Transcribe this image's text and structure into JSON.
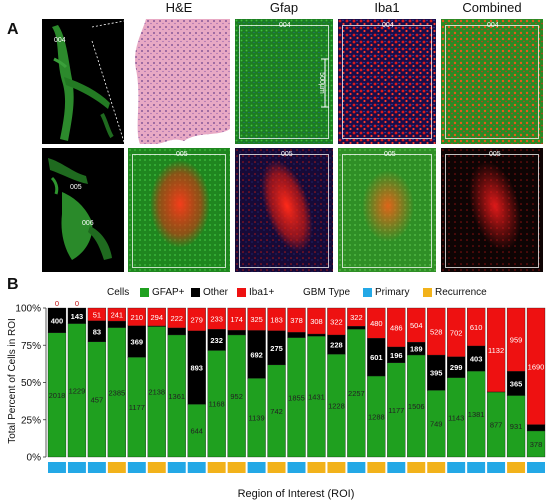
{
  "panel_a": {
    "letter": "A",
    "columns": [
      "H&E",
      "Gfap",
      "Iba1",
      "Combined"
    ],
    "row1": {
      "overview_label": "004",
      "tile_labels": [
        "004",
        "004",
        "004"
      ],
      "scale_bar": "500µm"
    },
    "row2": {
      "overview_labels": [
        "005",
        "006"
      ],
      "tile_labels": [
        "005",
        "005",
        "005",
        "005"
      ]
    }
  },
  "panel_b": {
    "letter": "B",
    "legend": {
      "cells_title": "Cells",
      "cells": [
        {
          "label": "GFAP+",
          "color": "#1fa01f"
        },
        {
          "label": "Other",
          "color": "#000000"
        },
        {
          "label": "Iba1+",
          "color": "#ee1111"
        }
      ],
      "type_title": "GBM Type",
      "types": [
        {
          "label": "Primary",
          "color": "#23a8e6"
        },
        {
          "label": "Recurrence",
          "color": "#f2b21a"
        }
      ]
    }
  },
  "chart_data": {
    "type": "bar",
    "stacked": true,
    "normalized": true,
    "ylabel": "Total Percent of Cells in ROI",
    "xlabel": "Region of Interest (ROI)",
    "yticks": [
      "0%",
      "25%",
      "50%",
      "75%",
      "100%"
    ],
    "ylim": [
      0,
      100
    ],
    "series": [
      {
        "name": "GFAP+",
        "values": [
          2018,
          1229,
          457,
          2385,
          1177,
          2138,
          1361,
          644,
          1168,
          952,
          1139,
          742,
          1855,
          1431,
          1228,
          2257,
          1288,
          1177,
          1506,
          749,
          1143,
          1381,
          877,
          931,
          378
        ]
      },
      {
        "name": "Other",
        "values": [
          400,
          143,
          83,
          119,
          369,
          8,
          78,
          893,
          232,
          36,
          692,
          275,
          81,
          24,
          228,
          50,
          601,
          196,
          189,
          395,
          299,
          403,
          1,
          365,
          92
        ]
      },
      {
        "name": "Iba1+",
        "values": [
          0,
          0,
          51,
          241,
          210,
          294,
          222,
          279,
          233,
          174,
          325,
          183,
          378,
          308,
          322,
          322,
          480,
          486,
          504,
          528,
          702,
          610,
          1132,
          959,
          1690
        ]
      }
    ],
    "gbm_type": [
      "P",
      "P",
      "P",
      "R",
      "P",
      "R",
      "P",
      "P",
      "R",
      "R",
      "P",
      "R",
      "P",
      "R",
      "R",
      "P",
      "R",
      "P",
      "R",
      "R",
      "P",
      "P",
      "P",
      "R",
      "P"
    ]
  }
}
